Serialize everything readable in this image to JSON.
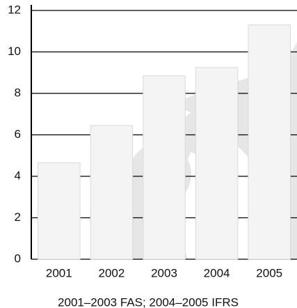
{
  "chart_data": {
    "type": "bar",
    "categories": [
      "2001",
      "2002",
      "2003",
      "2004",
      "2005"
    ],
    "values": [
      4.65,
      6.45,
      8.85,
      9.25,
      11.3
    ],
    "color": "#f4f4f4",
    "ylim": [
      0,
      12
    ],
    "yticks": [
      0,
      2,
      4,
      6,
      8,
      10,
      12
    ],
    "grid": true,
    "caption": "2001–2003 FAS; 2004–2005 IFRS"
  }
}
